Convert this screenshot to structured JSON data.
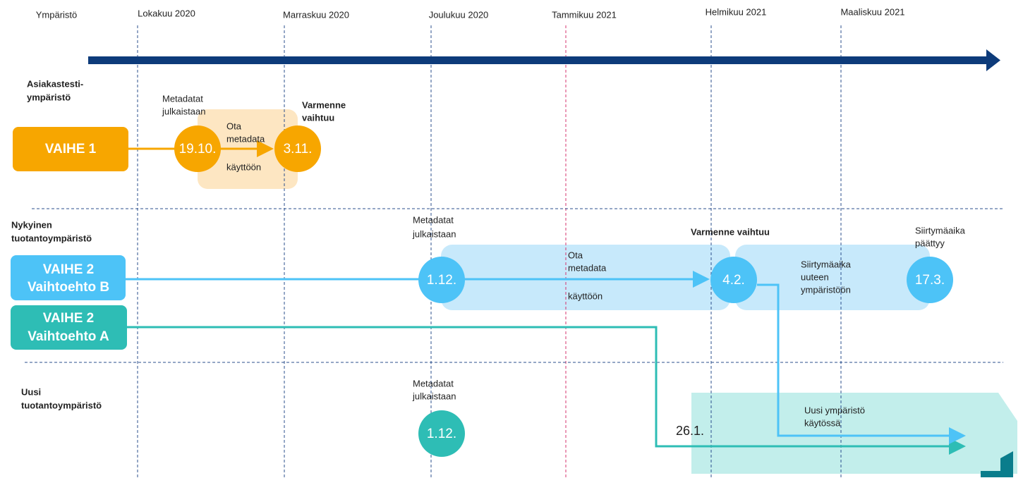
{
  "header": {
    "environment": "Ympäristö",
    "months": [
      "Lokakuu 2020",
      "Marraskuu 2020",
      "Joulukuu 2020",
      "Tammikuu 2021",
      "Helmikuu 2021",
      "Maaliskuu 2021"
    ]
  },
  "test_env": {
    "label": [
      "Asiakastesti-",
      "ympäristö"
    ],
    "phase": "VAIHE 1",
    "published": [
      "Metadatat",
      "julkaistaan"
    ],
    "published_date": "19.10.",
    "take_into_use": [
      "Ota",
      "metadata",
      "käyttöön"
    ],
    "certificate": [
      "Varmenne",
      "vaihtuu"
    ],
    "certificate_date": "3.11."
  },
  "current_env": {
    "label": [
      "Nykyinen",
      "tuotantoympäristö"
    ],
    "phase_b": [
      "VAIHE 2",
      "Vaihtoehto B"
    ],
    "phase_a": [
      "VAIHE 2",
      "Vaihtoehto A"
    ],
    "published": [
      "Metadatat",
      "julkaistaan"
    ],
    "published_date": "1.12.",
    "take_into_use": [
      "Ota",
      "metadata",
      "käyttöön"
    ],
    "certificate": "Varmenne vaihtuu",
    "certificate_date": "4.2.",
    "transition": [
      "Siirtymäaika",
      "uuteen",
      "ympäristöön"
    ],
    "transition_end": [
      "Siirtymäaika",
      "päättyy"
    ],
    "transition_end_date": "17.3."
  },
  "new_env": {
    "label": [
      "Uusi",
      "tuotantoympäristö"
    ],
    "published": [
      "Metadatat",
      "julkaistaan"
    ],
    "published_date": "1.12.",
    "switch_date": "26.1.",
    "in_use": [
      "Uusi ympäristö",
      "käytössä"
    ]
  }
}
